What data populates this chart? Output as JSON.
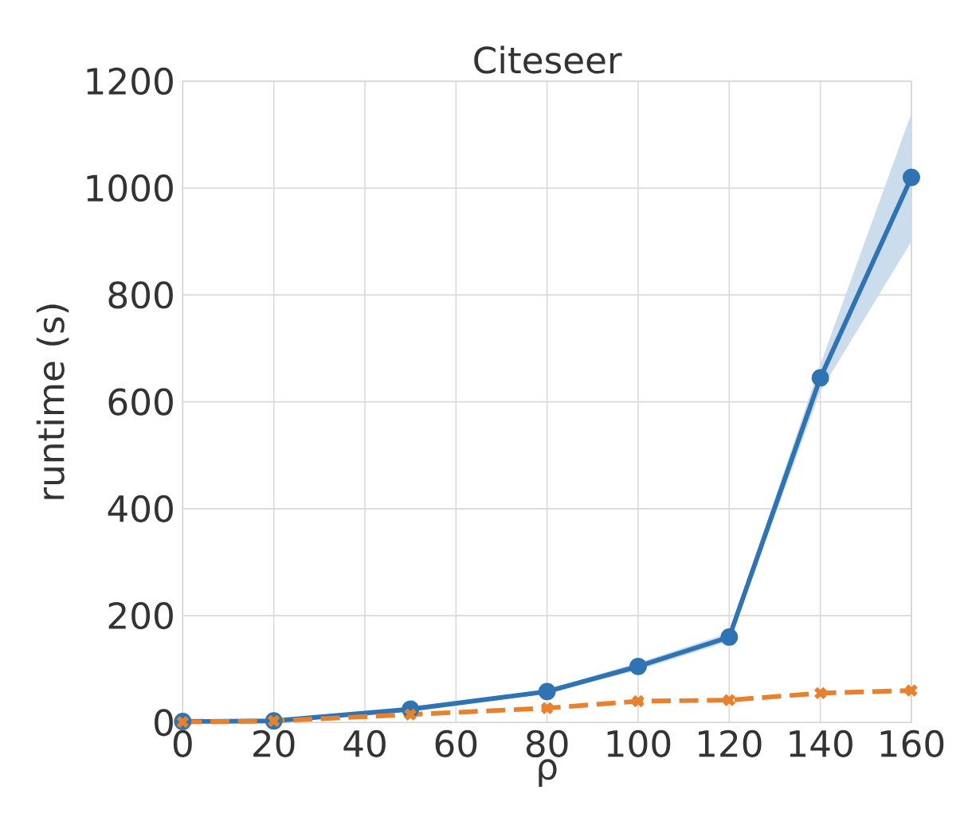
{
  "chart_data": {
    "type": "line",
    "title": "Citeseer",
    "xlabel": "ρ",
    "ylabel": "runtime (s)",
    "x": [
      0,
      20,
      50,
      80,
      100,
      120,
      140,
      160
    ],
    "series": [
      {
        "color": "#2f73b3",
        "values": [
          2,
          3,
          25,
          58,
          105,
          160,
          645,
          1020
        ],
        "lower": [
          1,
          2,
          22,
          54,
          98,
          152,
          620,
          900
        ],
        "upper": [
          3,
          4,
          28,
          62,
          112,
          168,
          670,
          1140
        ],
        "marker": "circle",
        "line_style": "solid"
      },
      {
        "color": "#e8812f",
        "values": [
          1,
          3,
          15,
          27,
          40,
          42,
          55,
          60
        ],
        "marker": "cross",
        "line_style": "dashed"
      }
    ],
    "xlim": [
      0,
      160
    ],
    "ylim": [
      0,
      1200
    ],
    "xticks": [
      0,
      20,
      40,
      60,
      80,
      100,
      120,
      140,
      160
    ],
    "yticks": [
      0,
      200,
      400,
      600,
      800,
      1000,
      1200
    ],
    "grid": true
  }
}
